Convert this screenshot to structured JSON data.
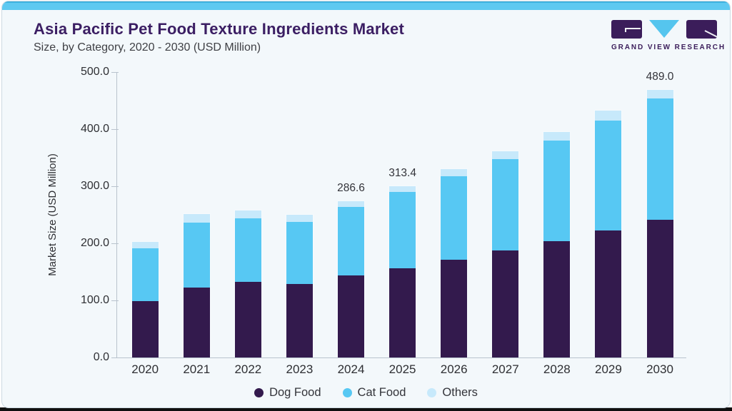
{
  "page": {
    "title": "Asia Pacific Pet Food Texture Ingredients Market",
    "subtitle": "Size, by Category, 2020 - 2030 (USD Million)"
  },
  "logo": {
    "text": "GRAND VIEW RESEARCH"
  },
  "colors": {
    "accent_strip": "#5ec9f1",
    "accent_strip_dark": "#3eb3e0",
    "title_text": "#3b1e63",
    "card_bg": "#f3f8fb",
    "axis_line": "#b9c3cd",
    "dog_food": "#331a4d",
    "cat_food": "#57c8f3",
    "others": "#c7e9fb"
  },
  "chart_data": {
    "type": "bar",
    "stacked": true,
    "title": "Asia Pacific Pet Food Texture Ingredients Market Size, by Category, 2020 - 2030 (USD Million)",
    "xlabel": "",
    "ylabel": "Market Size (USD Million)",
    "ylim": [
      0,
      500
    ],
    "yticks": [
      "0.0",
      "100.0",
      "200.0",
      "300.0",
      "400.0",
      "500.0"
    ],
    "grid": false,
    "legend_position": "bottom",
    "categories": [
      "2020",
      "2021",
      "2022",
      "2023",
      "2024",
      "2025",
      "2026",
      "2027",
      "2028",
      "2029",
      "2030"
    ],
    "series": [
      {
        "name": "Dog Food",
        "color": "#331a4d",
        "values": [
          103.2,
          128.4,
          138.8,
          134.0,
          150.0,
          163.4,
          179.1,
          195.1,
          213.0,
          232.0,
          251.2
        ]
      },
      {
        "name": "Cat Food",
        "color": "#57c8f3",
        "values": [
          96.8,
          119.2,
          115.8,
          114.9,
          125.1,
          139.2,
          153.0,
          167.5,
          183.8,
          201.6,
          222.1
        ]
      },
      {
        "name": "Others",
        "color": "#c7e9fb",
        "values": [
          11.4,
          14.8,
          14.3,
          12.2,
          11.5,
          10.8,
          12.6,
          15.0,
          15.6,
          17.4,
          15.7
        ]
      }
    ],
    "totals": [
      211.4,
      262.4,
      268.9,
      261.1,
      286.6,
      313.4,
      344.7,
      377.6,
      412.4,
      451.0,
      489.0
    ],
    "bar_labels": {
      "2024": "286.6",
      "2025": "313.4",
      "2030": "489.0"
    }
  }
}
